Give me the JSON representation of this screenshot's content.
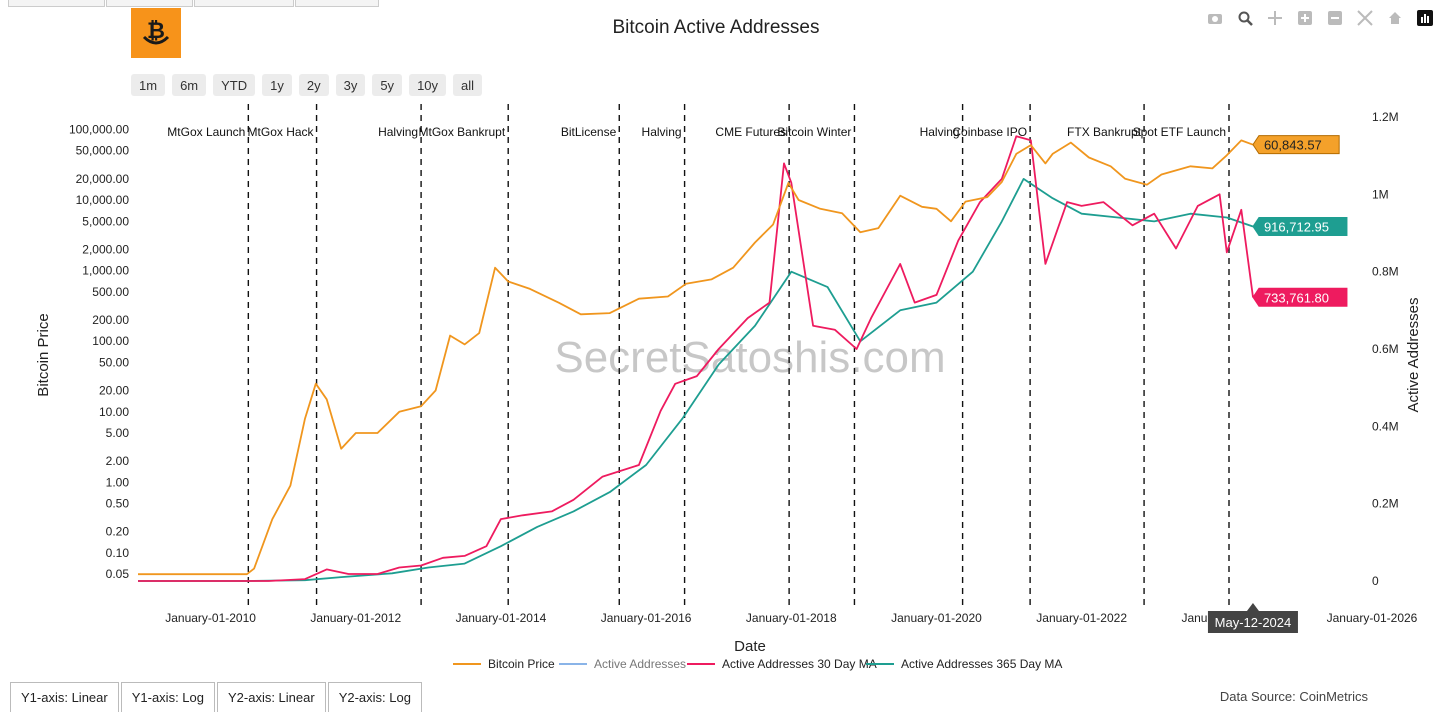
{
  "header": {
    "title": "Bitcoin Active Addresses",
    "logo_icon": "bitcoin-smile-logo"
  },
  "modebar": [
    {
      "name": "camera-icon"
    },
    {
      "name": "zoom-icon"
    },
    {
      "name": "pan-icon"
    },
    {
      "name": "zoom-in-icon"
    },
    {
      "name": "zoom-out-icon"
    },
    {
      "name": "autoscale-icon"
    },
    {
      "name": "home-icon"
    },
    {
      "name": "plotly-logo-icon"
    }
  ],
  "ranges": [
    "1m",
    "6m",
    "YTD",
    "1y",
    "2y",
    "3y",
    "5y",
    "10y",
    "all"
  ],
  "axis_buttons": [
    "Y1-axis: Linear",
    "Y1-axis: Log",
    "Y2-axis: Linear",
    "Y2-axis: Log"
  ],
  "footer": {
    "source": "Data Source: CoinMetrics"
  },
  "watermark": "SecretSatoshis.com",
  "colors": {
    "price": "#f0961e",
    "active": "#8ab4e8",
    "ma30": "#ee1b5f",
    "ma365": "#1e9e91"
  },
  "chart_data": {
    "type": "line",
    "title": "Bitcoin Active Addresses",
    "xlabel": "Date",
    "y1label": "Bitcoin Price",
    "y2label": "Active Addresses",
    "y1_scale": "log",
    "xlim": [
      2009.0,
      2026.0
    ],
    "y1lim": [
      0.04,
      150000
    ],
    "y2lim": [
      0,
      1200000
    ],
    "x_ticks": [
      {
        "value": 2010.0,
        "label": "January-01-2010"
      },
      {
        "value": 2012.0,
        "label": "January-01-2012"
      },
      {
        "value": 2014.0,
        "label": "January-01-2014"
      },
      {
        "value": 2016.0,
        "label": "January-01-2016"
      },
      {
        "value": 2018.0,
        "label": "January-01-2018"
      },
      {
        "value": 2020.0,
        "label": "January-01-2020"
      },
      {
        "value": 2022.0,
        "label": "January-01-2022"
      },
      {
        "value": 2024.0,
        "label": "January-01-2024"
      },
      {
        "value": 2026.0,
        "label": "January-01-2026"
      }
    ],
    "y1_ticks": [
      {
        "value": 100000,
        "label": "100,000.00"
      },
      {
        "value": 50000,
        "label": "50,000.00"
      },
      {
        "value": 20000,
        "label": "20,000.00"
      },
      {
        "value": 10000,
        "label": "10,000.00"
      },
      {
        "value": 5000,
        "label": "5,000.00"
      },
      {
        "value": 2000,
        "label": "2,000.00"
      },
      {
        "value": 1000,
        "label": "1,000.00"
      },
      {
        "value": 500,
        "label": "500.00"
      },
      {
        "value": 200,
        "label": "200.00"
      },
      {
        "value": 100,
        "label": "100.00"
      },
      {
        "value": 50,
        "label": "50.00"
      },
      {
        "value": 20,
        "label": "20.00"
      },
      {
        "value": 10,
        "label": "10.00"
      },
      {
        "value": 5,
        "label": "5.00"
      },
      {
        "value": 2,
        "label": "2.00"
      },
      {
        "value": 1,
        "label": "1.00"
      },
      {
        "value": 0.5,
        "label": "0.50"
      },
      {
        "value": 0.2,
        "label": "0.20"
      },
      {
        "value": 0.1,
        "label": "0.10"
      },
      {
        "value": 0.05,
        "label": "0.05"
      }
    ],
    "y2_ticks": [
      {
        "value": 1200000,
        "label": "1.2M"
      },
      {
        "value": 1000000,
        "label": "1M"
      },
      {
        "value": 800000,
        "label": "0.8M"
      },
      {
        "value": 600000,
        "label": "0.6M"
      },
      {
        "value": 400000,
        "label": "0.4M"
      },
      {
        "value": 200000,
        "label": "0.2M"
      },
      {
        "value": 0,
        "label": "0"
      }
    ],
    "events": [
      {
        "x": 2010.52,
        "label": "MtGox Launch"
      },
      {
        "x": 2011.46,
        "label": "MtGox Hack"
      },
      {
        "x": 2012.9,
        "label": "Halving"
      },
      {
        "x": 2014.1,
        "label": "MtGox Bankrupt"
      },
      {
        "x": 2015.63,
        "label": "BitLicense"
      },
      {
        "x": 2016.53,
        "label": "Halving"
      },
      {
        "x": 2017.97,
        "label": "CME Futures"
      },
      {
        "x": 2018.87,
        "label": "Bitcoin Winter"
      },
      {
        "x": 2020.36,
        "label": "Halving"
      },
      {
        "x": 2021.29,
        "label": "Coinbase IPO"
      },
      {
        "x": 2022.86,
        "label": "FTX Bankrupt"
      },
      {
        "x": 2024.03,
        "label": "Spot ETF Launch"
      }
    ],
    "series": [
      {
        "name": "Bitcoin Price",
        "axis": "y1",
        "color": "#f0961e",
        "last_label": "60,843.57",
        "points": [
          [
            2009.0,
            0.05
          ],
          [
            2010.0,
            0.05
          ],
          [
            2010.5,
            0.05
          ],
          [
            2010.6,
            0.06
          ],
          [
            2010.85,
            0.3
          ],
          [
            2011.1,
            0.9
          ],
          [
            2011.3,
            8
          ],
          [
            2011.45,
            25
          ],
          [
            2011.6,
            15
          ],
          [
            2011.8,
            3
          ],
          [
            2012.0,
            5
          ],
          [
            2012.3,
            5
          ],
          [
            2012.6,
            10
          ],
          [
            2012.9,
            12
          ],
          [
            2013.1,
            20
          ],
          [
            2013.3,
            120
          ],
          [
            2013.5,
            90
          ],
          [
            2013.7,
            130
          ],
          [
            2013.92,
            1100
          ],
          [
            2014.1,
            700
          ],
          [
            2014.4,
            550
          ],
          [
            2014.8,
            350
          ],
          [
            2015.1,
            240
          ],
          [
            2015.5,
            250
          ],
          [
            2015.9,
            400
          ],
          [
            2016.3,
            430
          ],
          [
            2016.55,
            650
          ],
          [
            2016.9,
            750
          ],
          [
            2017.2,
            1100
          ],
          [
            2017.5,
            2500
          ],
          [
            2017.75,
            4500
          ],
          [
            2017.96,
            17500
          ],
          [
            2018.1,
            10000
          ],
          [
            2018.4,
            7500
          ],
          [
            2018.7,
            6500
          ],
          [
            2018.95,
            3500
          ],
          [
            2019.2,
            4000
          ],
          [
            2019.5,
            11500
          ],
          [
            2019.8,
            8000
          ],
          [
            2020.0,
            7500
          ],
          [
            2020.2,
            5000
          ],
          [
            2020.4,
            9500
          ],
          [
            2020.7,
            11000
          ],
          [
            2020.9,
            18000
          ],
          [
            2021.1,
            45000
          ],
          [
            2021.3,
            60000
          ],
          [
            2021.5,
            33000
          ],
          [
            2021.6,
            45000
          ],
          [
            2021.85,
            65000
          ],
          [
            2022.1,
            40000
          ],
          [
            2022.4,
            30000
          ],
          [
            2022.6,
            20000
          ],
          [
            2022.9,
            16500
          ],
          [
            2023.1,
            23000
          ],
          [
            2023.5,
            30000
          ],
          [
            2023.8,
            28000
          ],
          [
            2024.0,
            43000
          ],
          [
            2024.2,
            70000
          ],
          [
            2024.36,
            60843.57
          ]
        ]
      },
      {
        "name": "Active Addresses",
        "axis": "y2",
        "color": "#8ab4e8",
        "visible": false,
        "points": []
      },
      {
        "name": "Active Addresses 30 Day MA",
        "axis": "y2",
        "color": "#ee1b5f",
        "last_label": "733,761.80",
        "points": [
          [
            2009.0,
            0
          ],
          [
            2010.0,
            0
          ],
          [
            2010.8,
            0
          ],
          [
            2011.3,
            5000
          ],
          [
            2011.6,
            30000
          ],
          [
            2011.9,
            18000
          ],
          [
            2012.3,
            18000
          ],
          [
            2012.6,
            35000
          ],
          [
            2012.9,
            40000
          ],
          [
            2013.2,
            60000
          ],
          [
            2013.5,
            65000
          ],
          [
            2013.8,
            90000
          ],
          [
            2014.0,
            160000
          ],
          [
            2014.3,
            170000
          ],
          [
            2014.7,
            180000
          ],
          [
            2015.0,
            210000
          ],
          [
            2015.4,
            270000
          ],
          [
            2015.9,
            300000
          ],
          [
            2016.2,
            440000
          ],
          [
            2016.4,
            510000
          ],
          [
            2016.7,
            530000
          ],
          [
            2017.0,
            600000
          ],
          [
            2017.4,
            680000
          ],
          [
            2017.7,
            720000
          ],
          [
            2017.9,
            1080000
          ],
          [
            2018.0,
            1030000
          ],
          [
            2018.3,
            660000
          ],
          [
            2018.6,
            650000
          ],
          [
            2018.9,
            600000
          ],
          [
            2019.1,
            680000
          ],
          [
            2019.5,
            820000
          ],
          [
            2019.7,
            720000
          ],
          [
            2020.0,
            740000
          ],
          [
            2020.3,
            880000
          ],
          [
            2020.6,
            980000
          ],
          [
            2020.9,
            1040000
          ],
          [
            2021.1,
            1150000
          ],
          [
            2021.3,
            1140000
          ],
          [
            2021.5,
            820000
          ],
          [
            2021.8,
            980000
          ],
          [
            2022.0,
            970000
          ],
          [
            2022.3,
            980000
          ],
          [
            2022.7,
            920000
          ],
          [
            2023.0,
            950000
          ],
          [
            2023.3,
            860000
          ],
          [
            2023.6,
            970000
          ],
          [
            2023.9,
            1000000
          ],
          [
            2024.0,
            850000
          ],
          [
            2024.2,
            960000
          ],
          [
            2024.36,
            733761.8
          ]
        ]
      },
      {
        "name": "Active Addresses 365 Day MA",
        "axis": "y2",
        "color": "#1e9e91",
        "last_label": "916,712.95",
        "points": [
          [
            2009.0,
            0
          ],
          [
            2010.5,
            0
          ],
          [
            2011.3,
            2000
          ],
          [
            2011.8,
            10000
          ],
          [
            2012.5,
            20000
          ],
          [
            2013.0,
            35000
          ],
          [
            2013.5,
            45000
          ],
          [
            2014.0,
            90000
          ],
          [
            2014.5,
            140000
          ],
          [
            2015.0,
            180000
          ],
          [
            2015.5,
            230000
          ],
          [
            2016.0,
            300000
          ],
          [
            2016.5,
            420000
          ],
          [
            2017.0,
            560000
          ],
          [
            2017.5,
            660000
          ],
          [
            2018.0,
            800000
          ],
          [
            2018.5,
            760000
          ],
          [
            2018.95,
            620000
          ],
          [
            2019.5,
            700000
          ],
          [
            2020.0,
            720000
          ],
          [
            2020.5,
            800000
          ],
          [
            2020.9,
            930000
          ],
          [
            2021.2,
            1040000
          ],
          [
            2021.6,
            990000
          ],
          [
            2022.0,
            950000
          ],
          [
            2022.5,
            940000
          ],
          [
            2023.0,
            930000
          ],
          [
            2023.5,
            950000
          ],
          [
            2024.0,
            940000
          ],
          [
            2024.36,
            916712.95
          ]
        ]
      }
    ],
    "hover_label": "May-12-2024",
    "legend": [
      "Bitcoin Price",
      "Active Addresses",
      "Active Addresses 30 Day MA",
      "Active Addresses 365 Day MA"
    ]
  }
}
